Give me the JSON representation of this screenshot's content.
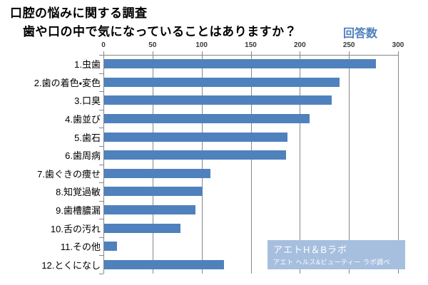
{
  "title": "口腔の悩みに関する調査",
  "subtitle": "歯や口の中で気になっていることはありますか？",
  "legend_label": "回答数",
  "watermark": {
    "line1": "アエトH＆Bラボ",
    "line2": "アエト ヘルス&ビューティー ラボ調べ"
  },
  "colors": {
    "bar": "#4f81bd",
    "legend_text": "#4f81bd",
    "gridline": "#878787",
    "axis_text": "#3a3a3a",
    "watermark_bg": "#a7bfdf",
    "watermark_text": "#ffffff"
  },
  "chart_data": {
    "type": "bar",
    "orientation": "horizontal",
    "title": "口腔の悩みに関する調査",
    "subtitle": "歯や口の中で気になっていることはありますか？",
    "value_label": "回答数",
    "categories": [
      "1.虫歯",
      "2.歯の着色・変色",
      "3.口臭",
      "4.歯並び",
      "5.歯石",
      "6.歯周病",
      "7.歯ぐきの痩せ",
      "8.知覚過敏",
      "9.歯槽膿漏",
      "10.舌の汚れ",
      "11.その他",
      "12.とくになし"
    ],
    "values": [
      277,
      240,
      232,
      209,
      187,
      185,
      108,
      100,
      93,
      78,
      13,
      122
    ],
    "xlabel": "",
    "ylabel": "",
    "xlim": [
      0,
      300
    ],
    "axis_ticks": [
      0,
      50,
      100,
      150,
      200,
      250,
      300
    ],
    "grid": true,
    "legend_position": "top-right"
  }
}
